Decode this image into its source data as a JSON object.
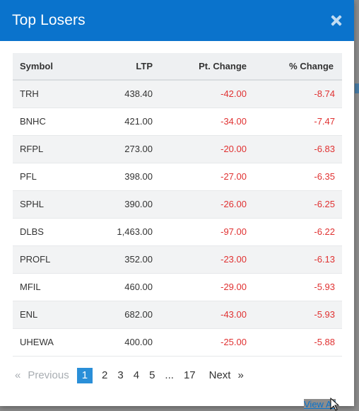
{
  "modal": {
    "title": "Top Losers"
  },
  "table": {
    "columns": [
      "Symbol",
      "LTP",
      "Pt. Change",
      "% Change"
    ],
    "rows": [
      {
        "symbol": "TRH",
        "ltp": "438.40",
        "pt_change": "-42.00",
        "pct_change": "-8.74"
      },
      {
        "symbol": "BNHC",
        "ltp": "421.00",
        "pt_change": "-34.00",
        "pct_change": "-7.47"
      },
      {
        "symbol": "RFPL",
        "ltp": "273.00",
        "pt_change": "-20.00",
        "pct_change": "-6.83"
      },
      {
        "symbol": "PFL",
        "ltp": "398.00",
        "pt_change": "-27.00",
        "pct_change": "-6.35"
      },
      {
        "symbol": "SPHL",
        "ltp": "390.00",
        "pt_change": "-26.00",
        "pct_change": "-6.25"
      },
      {
        "symbol": "DLBS",
        "ltp": "1,463.00",
        "pt_change": "-97.00",
        "pct_change": "-6.22"
      },
      {
        "symbol": "PROFL",
        "ltp": "352.00",
        "pt_change": "-23.00",
        "pct_change": "-6.13"
      },
      {
        "symbol": "MFIL",
        "ltp": "460.00",
        "pt_change": "-29.00",
        "pct_change": "-5.93"
      },
      {
        "symbol": "ENL",
        "ltp": "682.00",
        "pt_change": "-43.00",
        "pct_change": "-5.93"
      },
      {
        "symbol": "UHEWA",
        "ltp": "400.00",
        "pt_change": "-25.00",
        "pct_change": "-5.88"
      }
    ]
  },
  "pagination": {
    "first": "«",
    "previous": "Previous",
    "pages": [
      "1",
      "2",
      "3",
      "4",
      "5",
      "...",
      "17"
    ],
    "active_page": "1",
    "next": "Next",
    "last": "»"
  },
  "footer": {
    "view_all": "View All"
  },
  "colors": {
    "header_bg": "#0a73cc",
    "negative": "#e03131",
    "active_page": "#2a8fd8"
  },
  "icons": {
    "close": "close-icon"
  }
}
